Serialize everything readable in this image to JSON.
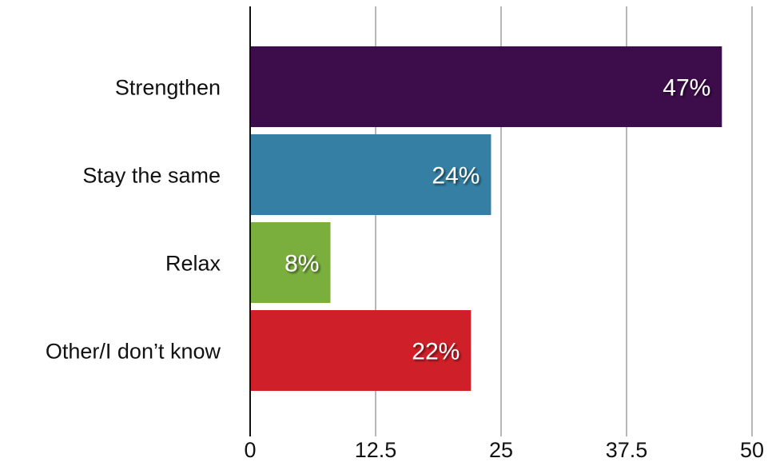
{
  "chart_data": {
    "type": "bar",
    "orientation": "horizontal",
    "categories": [
      "Strengthen",
      "Stay the same",
      "Relax",
      "Other/I don’t know"
    ],
    "values": [
      47,
      24,
      8,
      22
    ],
    "data_labels": [
      "47%",
      "24%",
      "8%",
      "22%"
    ],
    "colors": [
      "#3d0c4a",
      "#347fa3",
      "#7aaf3e",
      "#cf2029"
    ],
    "xlim": [
      0,
      50
    ],
    "xticks": [
      0,
      12.5,
      25,
      37.5,
      50
    ],
    "xtick_labels": [
      "0",
      "12.5",
      "25",
      "37.5",
      "50"
    ],
    "grid": "vertical",
    "legend": "none"
  }
}
